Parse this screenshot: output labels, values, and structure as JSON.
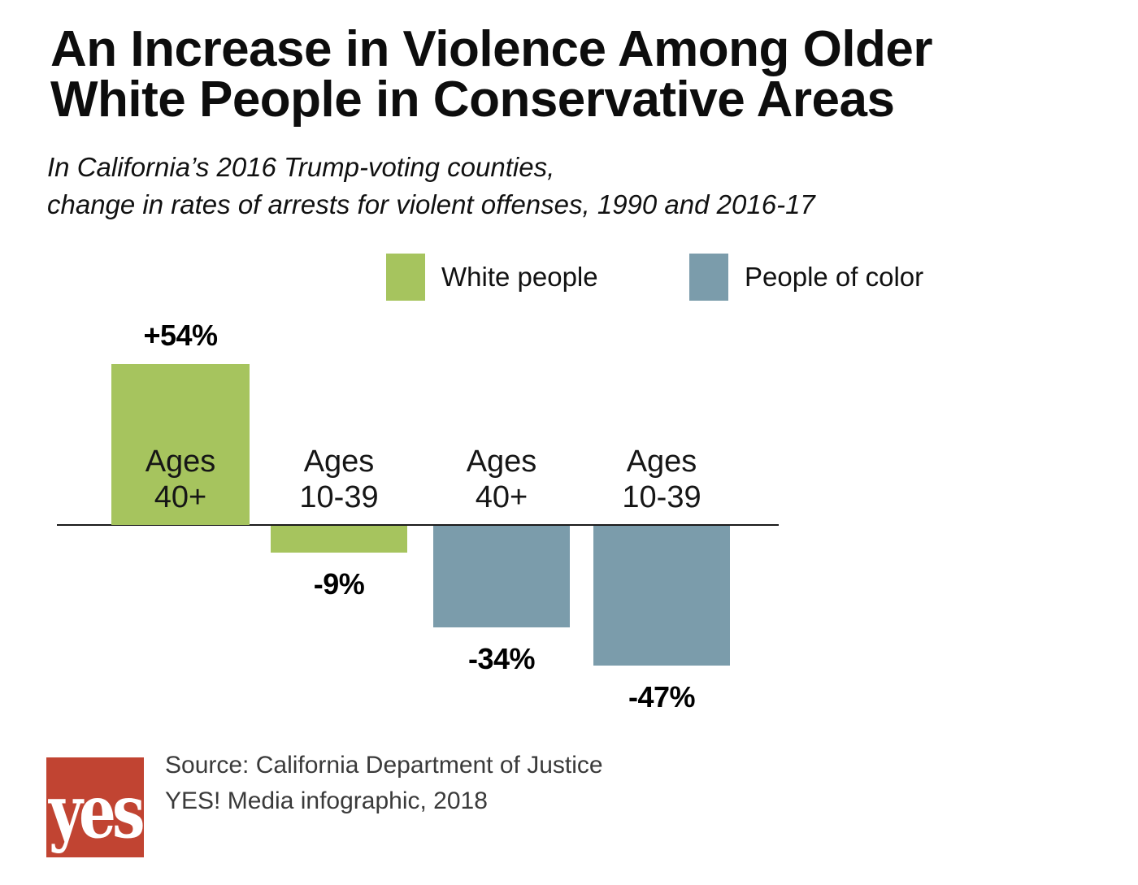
{
  "page": {
    "title_line1": "An Increase in Violence Among Older",
    "title_line2": "White People in Conservative Areas",
    "subtitle_line1": "In California’s 2016 Trump-voting counties,",
    "subtitle_line2": "change in rates of arrests for violent offenses, 1990 and 2016-17"
  },
  "legend": {
    "items": [
      {
        "label": "White people",
        "color": "#a6c45e"
      },
      {
        "label": "People of color",
        "color": "#7b9cab"
      }
    ]
  },
  "chart_data": {
    "type": "bar",
    "title": "An Increase in Violence Among Older White People in Conservative Areas",
    "subtitle": "In California’s 2016 Trump-voting counties, change in rates of arrests for violent offenses, 1990 and 2016-17",
    "categories": [
      "Ages 40+",
      "Ages 10-39",
      "Ages 40+",
      "Ages 10-39"
    ],
    "values": [
      54,
      -9,
      -34,
      -47
    ],
    "value_labels": [
      "+54%",
      "-9%",
      "-34%",
      "-47%"
    ],
    "groups": [
      "White people",
      "White people",
      "People of color",
      "People of color"
    ],
    "bar_colors": [
      "#a6c45e",
      "#a6c45e",
      "#7b9cab",
      "#7b9cab"
    ],
    "unit": "percent change in arrest rate",
    "baseline": 0,
    "ylim": [
      -55,
      60
    ],
    "grid": false,
    "axis_ticks": "none",
    "legend_position": "top",
    "legend": [
      "White people",
      "People of color"
    ]
  },
  "footer": {
    "logo_text": "yes!",
    "logo_color": "#c14432",
    "source_line1": "Source: California Department of Justice",
    "source_line2": "YES! Media infographic, 2018"
  }
}
